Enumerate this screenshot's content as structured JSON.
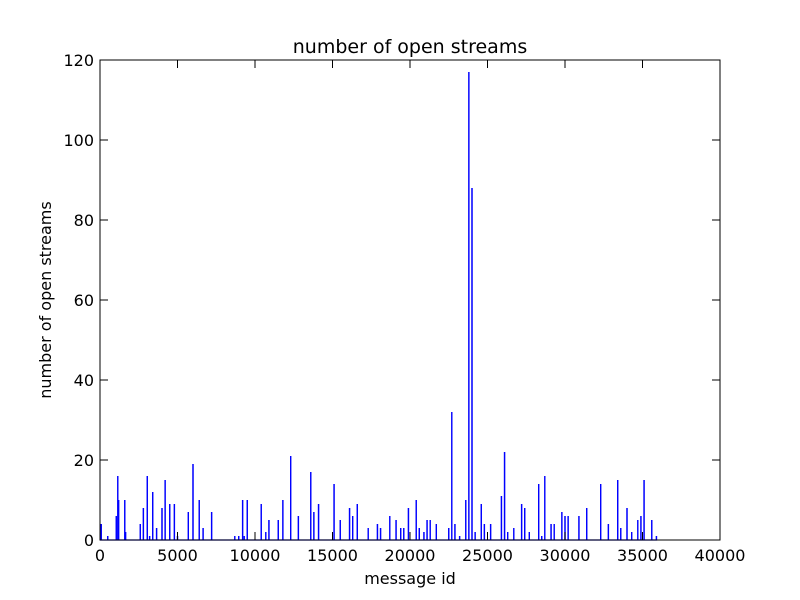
{
  "chart_data": {
    "type": "line",
    "title": "number of open streams",
    "xlabel": "message id",
    "ylabel": "number of open streams",
    "xlim": [
      0,
      40000
    ],
    "ylim": [
      0,
      120
    ],
    "xticks": [
      "0",
      "5000",
      "10000",
      "15000",
      "20000",
      "25000",
      "30000",
      "35000",
      "40000"
    ],
    "yticks": [
      "0",
      "20",
      "40",
      "60",
      "80",
      "100",
      "120"
    ],
    "grid": false,
    "legend": "none",
    "line_color": "#0000ff",
    "series": [
      {
        "x": [
          0,
          80,
          120,
          500,
          1050,
          1150,
          1200,
          1600,
          1650,
          2600,
          2800,
          3050,
          3200,
          3400,
          3650,
          4000,
          4200,
          4500,
          4800,
          5000,
          5700,
          6000,
          6400,
          6650,
          7200,
          8700,
          8950,
          9200,
          9300,
          9500,
          10400,
          10700,
          10900,
          11500,
          11800,
          12300,
          12800,
          13600,
          13800,
          14100,
          15100,
          15500,
          16100,
          16300,
          16600,
          17300,
          17900,
          18100,
          18700,
          19100,
          19400,
          19600,
          19900,
          20400,
          20600,
          20900,
          21100,
          21300,
          21700,
          22500,
          22700,
          22900,
          23200,
          23600,
          23800,
          24000,
          24200,
          24600,
          24800,
          25200,
          25900,
          26100,
          26300,
          26700,
          27200,
          27400,
          27700,
          28300,
          28500,
          28700,
          29100,
          29300,
          29800,
          30000,
          30200,
          30900,
          31400,
          31600,
          32300,
          32800,
          33400,
          33600,
          34000,
          34300,
          34700,
          34900,
          35100,
          35600,
          35900
        ],
        "y": [
          0,
          4,
          0,
          1,
          6,
          16,
          10,
          10,
          2,
          4,
          8,
          16,
          1,
          12,
          3,
          8,
          15,
          9,
          9,
          1,
          7,
          19,
          10,
          3,
          7,
          1,
          1,
          10,
          1,
          10,
          9,
          2,
          5,
          5,
          10,
          21,
          6,
          17,
          7,
          9,
          14,
          5,
          8,
          6,
          9,
          3,
          4,
          3,
          6,
          5,
          3,
          3,
          8,
          10,
          3,
          2,
          5,
          5,
          4,
          3,
          32,
          4,
          1,
          10,
          117,
          88,
          2,
          9,
          4,
          4,
          11,
          22,
          2,
          3,
          9,
          8,
          2,
          14,
          1,
          16,
          4,
          4,
          7,
          6,
          6,
          6,
          8,
          0,
          14,
          4,
          15,
          3,
          8,
          2,
          5,
          6,
          15,
          5,
          1
        ]
      }
    ]
  }
}
